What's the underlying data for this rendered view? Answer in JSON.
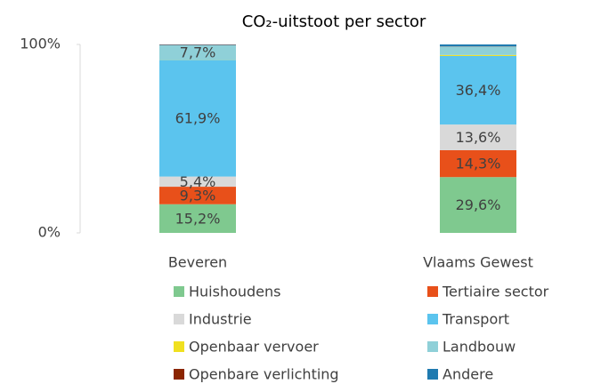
{
  "chart_data": {
    "type": "stacked_bar",
    "title": "CO₂-uitstoot per sector",
    "categories": [
      "Beveren",
      "Vlaams Gewest"
    ],
    "ylim": [
      0,
      100
    ],
    "yticks": [
      {
        "value": 0,
        "label": "0%"
      },
      {
        "value": 100,
        "label": "100%"
      }
    ],
    "series": [
      {
        "name": "Huishoudens",
        "color": "#7fc98f",
        "values": [
          15.2,
          29.6
        ],
        "value_labels": [
          "15,2%",
          "29,6%"
        ]
      },
      {
        "name": "Tertiaire sector",
        "color": "#e8501a",
        "values": [
          9.3,
          14.3
        ],
        "value_labels": [
          "9,3%",
          "14,3%"
        ]
      },
      {
        "name": "Industrie",
        "color": "#d9d9d9",
        "values": [
          5.4,
          13.6
        ],
        "value_labels": [
          "5,4%",
          "13,6%"
        ]
      },
      {
        "name": "Transport",
        "color": "#5bc4ee",
        "values": [
          61.9,
          36.4
        ],
        "value_labels": [
          "61,9%",
          "36,4%"
        ]
      },
      {
        "name": "Openbaar vervoer",
        "color": "#f0e020",
        "values": [
          0.1,
          0.5
        ],
        "value_labels": [
          null,
          null
        ]
      },
      {
        "name": "Landbouw",
        "color": "#8fd0d8",
        "values": [
          7.7,
          4.5
        ],
        "value_labels": [
          "7,7%",
          null
        ]
      },
      {
        "name": "Openbare verlichting",
        "color": "#8b2500",
        "values": [
          0.2,
          0.1
        ],
        "value_labels": [
          null,
          null
        ]
      },
      {
        "name": "Andere",
        "color": "#1f7ab0",
        "values": [
          0.2,
          1.0
        ],
        "value_labels": [
          null,
          null
        ]
      }
    ]
  }
}
